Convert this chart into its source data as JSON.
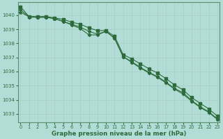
{
  "title": "Graphe pression niveau de la mer (hPa)",
  "bg_color": "#b2ddd6",
  "grid_color": "#c8e8e0",
  "line_color": "#2d6b3c",
  "x_ticks": [
    0,
    1,
    2,
    3,
    4,
    5,
    6,
    7,
    8,
    9,
    10,
    11,
    12,
    13,
    14,
    15,
    16,
    17,
    18,
    19,
    20,
    21,
    22,
    23
  ],
  "y_ticks": [
    1033,
    1034,
    1035,
    1036,
    1037,
    1038,
    1039,
    1040
  ],
  "ylim": [
    1032.4,
    1040.9
  ],
  "xlim": [
    -0.3,
    23.3
  ],
  "series1": [
    1040.6,
    1039.9,
    1039.9,
    1039.9,
    1039.8,
    1039.7,
    1039.5,
    1039.35,
    1039.1,
    1038.9,
    1038.9,
    1038.5,
    1037.2,
    1036.9,
    1036.55,
    1036.2,
    1035.9,
    1035.5,
    1035.05,
    1034.7,
    1034.15,
    1033.75,
    1033.35,
    1032.85
  ],
  "series2": [
    1040.2,
    1039.9,
    1039.85,
    1039.85,
    1039.75,
    1039.55,
    1039.35,
    1039.15,
    1038.85,
    1038.65,
    1038.85,
    1038.35,
    1037.05,
    1036.7,
    1036.3,
    1035.95,
    1035.65,
    1035.25,
    1034.8,
    1034.5,
    1033.95,
    1033.5,
    1033.15,
    1032.65
  ],
  "series3": [
    1040.4,
    1039.85,
    1039.85,
    1039.85,
    1039.75,
    1039.55,
    1039.3,
    1039.05,
    1038.6,
    1038.6,
    1038.85,
    1038.35,
    1037.05,
    1036.65,
    1036.25,
    1035.9,
    1035.6,
    1035.2,
    1034.75,
    1034.4,
    1033.9,
    1033.45,
    1033.1,
    1032.6
  ]
}
